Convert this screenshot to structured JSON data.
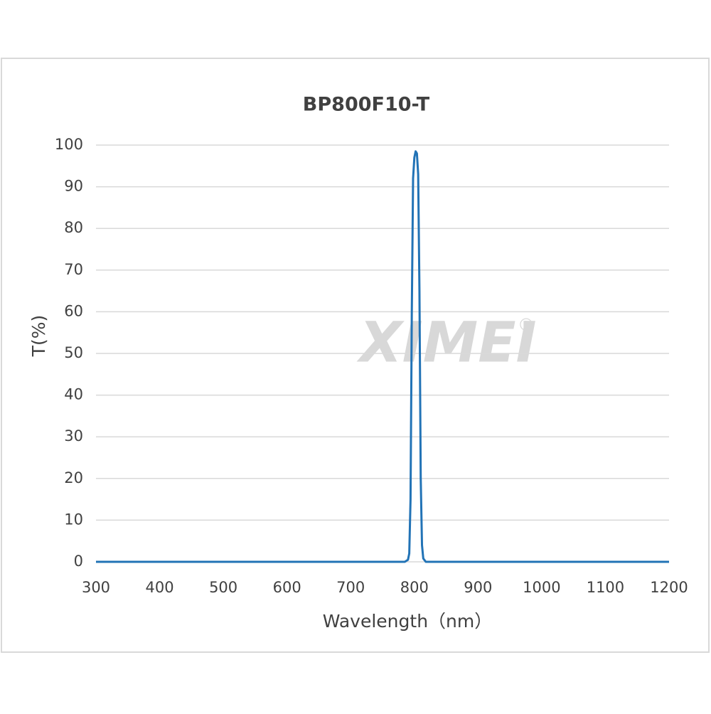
{
  "chart_data": {
    "type": "line",
    "title": "BP800F10-T",
    "xlabel": "Wavelength（nm）",
    "ylabel": "T(%)",
    "watermark": "XIMEI",
    "watermark_mark": "®",
    "x": [
      300,
      785,
      790,
      792,
      794,
      796,
      798,
      800,
      802,
      804,
      806,
      808,
      810,
      812,
      814,
      818,
      1200
    ],
    "series": [
      {
        "name": "BP800F10-T",
        "color": "#2273b6",
        "values": [
          0,
          0,
          0.5,
          2,
          15,
          60,
          92,
          97,
          98.5,
          98,
          93,
          65,
          20,
          4,
          0.8,
          0,
          0
        ]
      }
    ],
    "xlim": [
      300,
      1200
    ],
    "xticks": [
      300,
      400,
      500,
      600,
      700,
      800,
      900,
      1000,
      1100,
      1200
    ],
    "ylim": [
      0,
      100
    ],
    "yticks": [
      0,
      10,
      20,
      30,
      40,
      50,
      60,
      70,
      80,
      90,
      100
    ],
    "grid": true
  }
}
